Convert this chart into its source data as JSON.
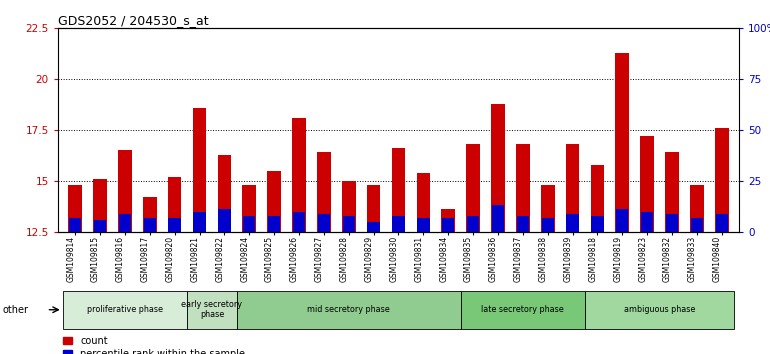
{
  "title": "GDS2052 / 204530_s_at",
  "samples": [
    "GSM109814",
    "GSM109815",
    "GSM109816",
    "GSM109817",
    "GSM109820",
    "GSM109821",
    "GSM109822",
    "GSM109824",
    "GSM109825",
    "GSM109826",
    "GSM109827",
    "GSM109828",
    "GSM109829",
    "GSM109830",
    "GSM109831",
    "GSM109834",
    "GSM109835",
    "GSM109836",
    "GSM109837",
    "GSM109838",
    "GSM109839",
    "GSM109818",
    "GSM109819",
    "GSM109823",
    "GSM109832",
    "GSM109833",
    "GSM109840"
  ],
  "count_values": [
    14.8,
    15.1,
    16.5,
    14.2,
    15.2,
    18.6,
    16.3,
    14.8,
    15.5,
    18.1,
    16.4,
    15.0,
    14.8,
    16.6,
    15.4,
    13.6,
    16.8,
    18.8,
    16.8,
    14.8,
    16.8,
    15.8,
    21.3,
    17.2,
    16.4,
    14.8,
    17.6
  ],
  "percentile_values": [
    13.2,
    13.1,
    13.4,
    13.2,
    13.2,
    13.5,
    13.6,
    13.3,
    13.3,
    13.5,
    13.4,
    13.3,
    13.0,
    13.3,
    13.2,
    13.2,
    13.3,
    13.8,
    13.3,
    13.2,
    13.4,
    13.3,
    13.6,
    13.5,
    13.4,
    13.2,
    13.4
  ],
  "bar_bottom": 12.5,
  "ylim": [
    12.5,
    22.5
  ],
  "yticks": [
    12.5,
    15.0,
    17.5,
    20.0,
    22.5
  ],
  "ytick_labels": [
    "12.5",
    "15",
    "17.5",
    "20",
    "22.5"
  ],
  "right_yticks": [
    0,
    25,
    50,
    75,
    100
  ],
  "phases": [
    {
      "label": "proliferative phase",
      "start": 0,
      "end": 5,
      "color": "#d8edd8"
    },
    {
      "label": "early secretory\nphase",
      "start": 5,
      "end": 7,
      "color": "#c0e0c0"
    },
    {
      "label": "mid secretory phase",
      "start": 7,
      "end": 16,
      "color": "#90cc90"
    },
    {
      "label": "late secretory phase",
      "start": 16,
      "end": 21,
      "color": "#78c878"
    },
    {
      "label": "ambiguous phase",
      "start": 21,
      "end": 27,
      "color": "#a0d8a0"
    }
  ],
  "count_color": "#cc0000",
  "percentile_color": "#0000cc",
  "bar_width": 0.55,
  "title_color": "#000000",
  "left_label_color": "#cc0000",
  "right_label_color": "#0000cc"
}
